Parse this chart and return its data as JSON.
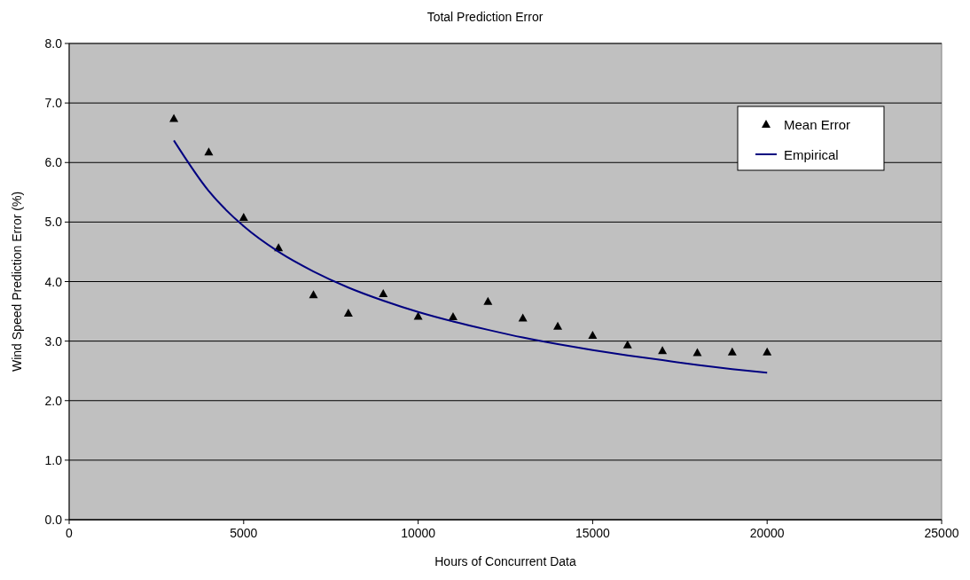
{
  "chart_data": {
    "type": "scatter",
    "title": "Total Prediction Error",
    "xlabel": "Hours of Concurrent Data",
    "ylabel": "Wind Speed Prediction Error (%)",
    "x": [
      3000,
      4000,
      5000,
      6000,
      7000,
      8000,
      9000,
      10000,
      11000,
      12000,
      13000,
      14000,
      15000,
      16000,
      17000,
      18000,
      19000,
      20000
    ],
    "series": [
      {
        "name": "Mean Error",
        "color": "#000000",
        "marker": "triangle",
        "values": [
          6.74,
          6.18,
          5.08,
          4.57,
          3.78,
          3.47,
          3.8,
          3.42,
          3.41,
          3.67,
          3.39,
          3.25,
          3.1,
          2.94,
          2.84,
          2.81,
          2.82,
          2.82
        ]
      },
      {
        "name": "Empirical",
        "type": "line",
        "color": "#000080",
        "marker": "none",
        "values": [
          6.37,
          5.52,
          4.93,
          4.5,
          4.17,
          3.9,
          3.68,
          3.49,
          3.33,
          3.19,
          3.06,
          2.95,
          2.85,
          2.76,
          2.68,
          2.6,
          2.53,
          2.47
        ]
      }
    ],
    "xlim": [
      0,
      25000
    ],
    "xticks": [
      0,
      5000,
      10000,
      15000,
      20000,
      25000
    ],
    "ylim": [
      0,
      8
    ],
    "yticks": [
      {
        "value": 0,
        "label": "0.0"
      },
      {
        "value": 1,
        "label": "1.0"
      },
      {
        "value": 2,
        "label": "2.0"
      },
      {
        "value": 3,
        "label": "3.0"
      },
      {
        "value": 4,
        "label": "4.0"
      },
      {
        "value": 5,
        "label": "5.0"
      },
      {
        "value": 6,
        "label": "6.0"
      },
      {
        "value": 7,
        "label": "7.0"
      },
      {
        "value": 8,
        "label": "8.0"
      }
    ],
    "grid": "y",
    "legend": "top right"
  }
}
